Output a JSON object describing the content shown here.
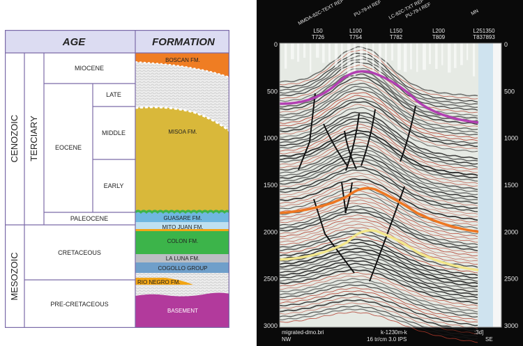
{
  "stratigraphy": {
    "headers": {
      "age": "AGE",
      "formation": "FORMATION"
    },
    "eras": {
      "cenozoic": "CENOZOIC",
      "mesozoic": "MESOZOIC"
    },
    "tertiary": "TERCIARY",
    "epochs": {
      "miocene": "MIOCENE",
      "eocene": "EOCENE",
      "late": "LATE",
      "middle": "MIDDLE",
      "early": "EARLY",
      "paleocene": "PALEOCENE",
      "cretaceous": "CRETACEOUS",
      "pre_cretaceous": "PRE-CRETACEOUS"
    },
    "formations": {
      "boscan": "BOSCAN FM.",
      "misoa": "MISOA FM.",
      "guasare": "GUASARE FM.",
      "mito_juan": "MITO JUAN FM.",
      "colon": "COLON FM.",
      "la_luna": "LA LUNA FM.",
      "cogollo": "COGOLLO GROUP",
      "rio_negro": "RIO NEGRO FM.",
      "basement": "BASEMENT"
    },
    "colors": {
      "header_bg": "#dcdcf2",
      "border": "#7b6aa8",
      "boscan": "#ef7d23",
      "misoa": "#d9b83a",
      "guasare": "#6fb7e0",
      "mito_juan": "#bfe0f0",
      "colon": "#3cb44a",
      "la_luna": "#bcbec4",
      "cogollo": "#6f9fca",
      "rio_negro": "#f2a516",
      "basement": "#b23a9c",
      "unconformity": "#dddddd"
    }
  },
  "seismic": {
    "top_labels": {
      "ref1": "MMDA-82C-TEXT REF",
      "ref2": "PU-79-H REF",
      "ref3": "LC-82C-TXT REF",
      "ref4": "PU-79-I REF",
      "ref5": "MN"
    },
    "trace_labels": {
      "l50": "L50",
      "t726": "T726",
      "l100": "L100",
      "t754": "T754",
      "l150": "L150",
      "t782": "T782",
      "l200": "L200",
      "t809": "T809",
      "l250": "L251350",
      "t837": "T837893"
    },
    "depth_ticks": [
      "0",
      "500",
      "1000",
      "1500",
      "2000",
      "2500",
      "3000"
    ],
    "footer": {
      "filename": "migrated-dmo.bri",
      "scale": "k-1230m-k",
      "code": ":3d]",
      "left_dir": "NW",
      "speed": "16 tr/cm 3.0 IPS",
      "right_dir": "SE"
    },
    "horizon_colors": {
      "top": "#b23fb2",
      "middle": "#ee7722",
      "lower": "#f2e68a"
    }
  }
}
